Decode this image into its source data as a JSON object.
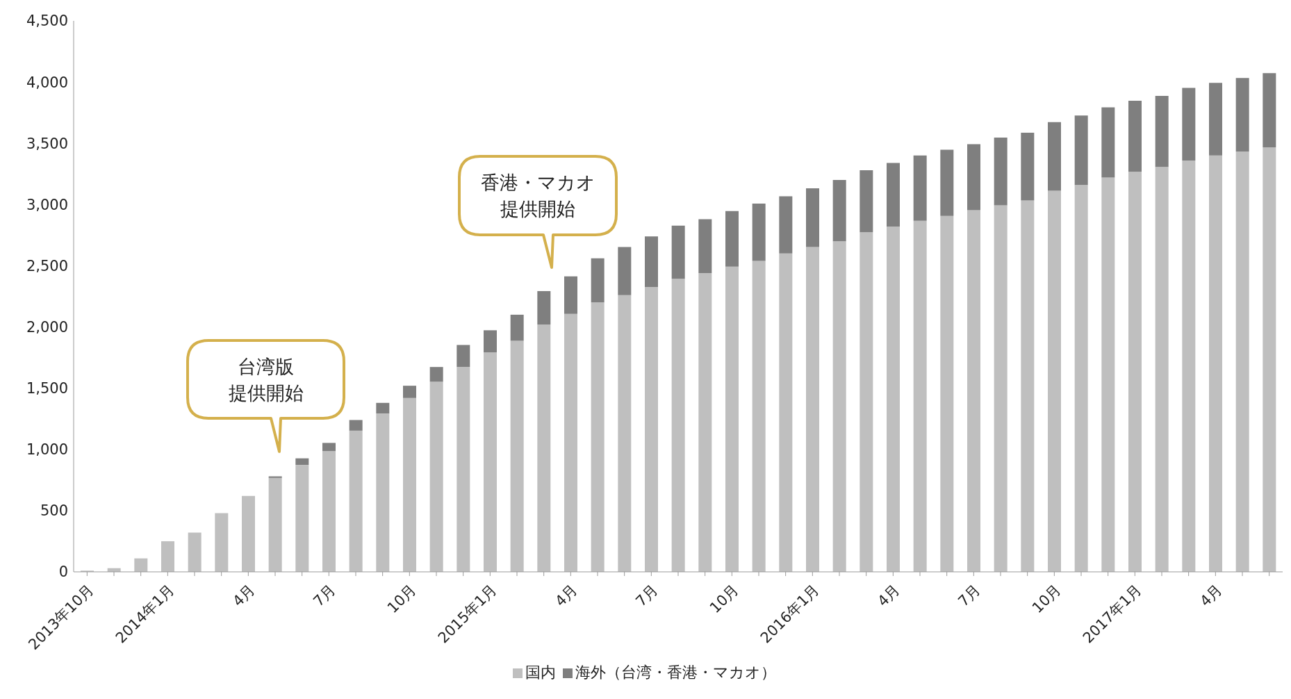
{
  "chart_data": {
    "type": "bar",
    "stacked": true,
    "categories": [
      "2013年10月",
      null,
      null,
      "2014年1月",
      null,
      null,
      "4月",
      null,
      null,
      "7月",
      null,
      null,
      "10月",
      null,
      null,
      "2015年1月",
      null,
      null,
      "4月",
      null,
      null,
      "7月",
      null,
      null,
      "10月",
      null,
      null,
      "2016年1月",
      null,
      null,
      "4月",
      null,
      null,
      "7月",
      null,
      null,
      "10月",
      null,
      null,
      "2017年1月",
      null,
      null,
      "4月",
      null,
      null
    ],
    "series": [
      {
        "name": "国内",
        "color": "#bfbfbf",
        "values": [
          10,
          30,
          110,
          250,
          320,
          480,
          620,
          767,
          873,
          987,
          1153,
          1293,
          1420,
          1553,
          1673,
          1793,
          1887,
          2020,
          2107,
          2200,
          2260,
          2327,
          2393,
          2440,
          2493,
          2540,
          2600,
          2653,
          2700,
          2773,
          2820,
          2867,
          2907,
          2953,
          2993,
          3033,
          3113,
          3160,
          3220,
          3267,
          3307,
          3360,
          3400,
          3433,
          3467
        ]
      },
      {
        "name": "海外（台湾・香港・マカオ）",
        "color": "#7f7f7f",
        "values": [
          null,
          null,
          null,
          null,
          null,
          null,
          null,
          13,
          54,
          66,
          87,
          87,
          100,
          120,
          180,
          180,
          213,
          273,
          306,
          360,
          393,
          413,
          434,
          440,
          454,
          467,
          467,
          480,
          500,
          507,
          520,
          533,
          540,
          540,
          554,
          554,
          560,
          567,
          573,
          580,
          580,
          593,
          593,
          600,
          606
        ]
      }
    ],
    "ylim": [
      0,
      4500
    ],
    "yticks": [
      0,
      500,
      {
        "value": 1000,
        "label": "1,000"
      },
      {
        "value": 1500,
        "label": "1,500"
      },
      {
        "value": 2000,
        "label": "2,000"
      },
      {
        "value": 2500,
        "label": "2,500"
      },
      {
        "value": 3000,
        "label": "3,000"
      },
      {
        "value": 3500,
        "label": "3,500"
      },
      {
        "value": 4000,
        "label": "4,000"
      },
      {
        "value": 4500,
        "label": "4,500"
      }
    ],
    "annotations": [
      "台湾版",
      "提供開始",
      "香港・マカオ",
      "提供開始"
    ],
    "legend": "bottom",
    "grid": false
  }
}
